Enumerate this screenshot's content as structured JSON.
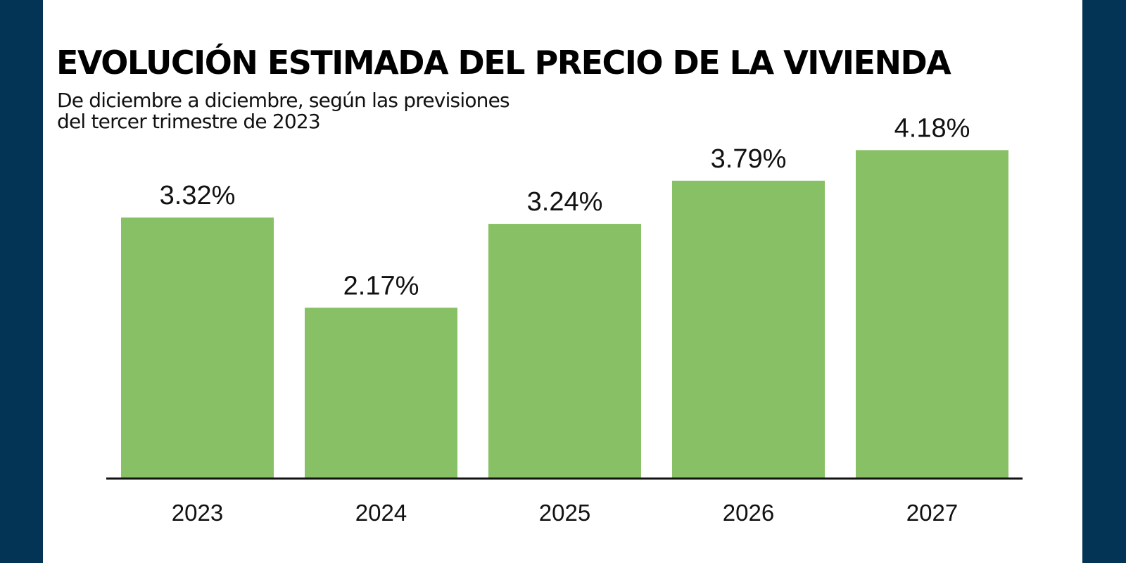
{
  "chart_data": {
    "type": "bar",
    "title": "EVOLUCIÓN ESTIMADA DEL PRECIO DE LA VIVIENDA",
    "subtitle_lines": [
      "De diciembre a diciembre, según las previsiones",
      "del tercer trimestre de 2023"
    ],
    "categories": [
      "2023",
      "2024",
      "2025",
      "2026",
      "2027"
    ],
    "values": [
      3.32,
      2.17,
      3.24,
      3.79,
      4.18
    ],
    "data_labels": [
      "3.32%",
      "2.17%",
      "3.24%",
      "3.79%",
      "4.18%"
    ],
    "xlabel": "",
    "ylabel": "",
    "ylim": [
      0,
      4.5
    ],
    "unit": "%",
    "grid": false,
    "legend": "none",
    "bar_color": "#87c065",
    "axis_color": "#111111"
  },
  "theme": {
    "side_panel_color": "#033355"
  }
}
